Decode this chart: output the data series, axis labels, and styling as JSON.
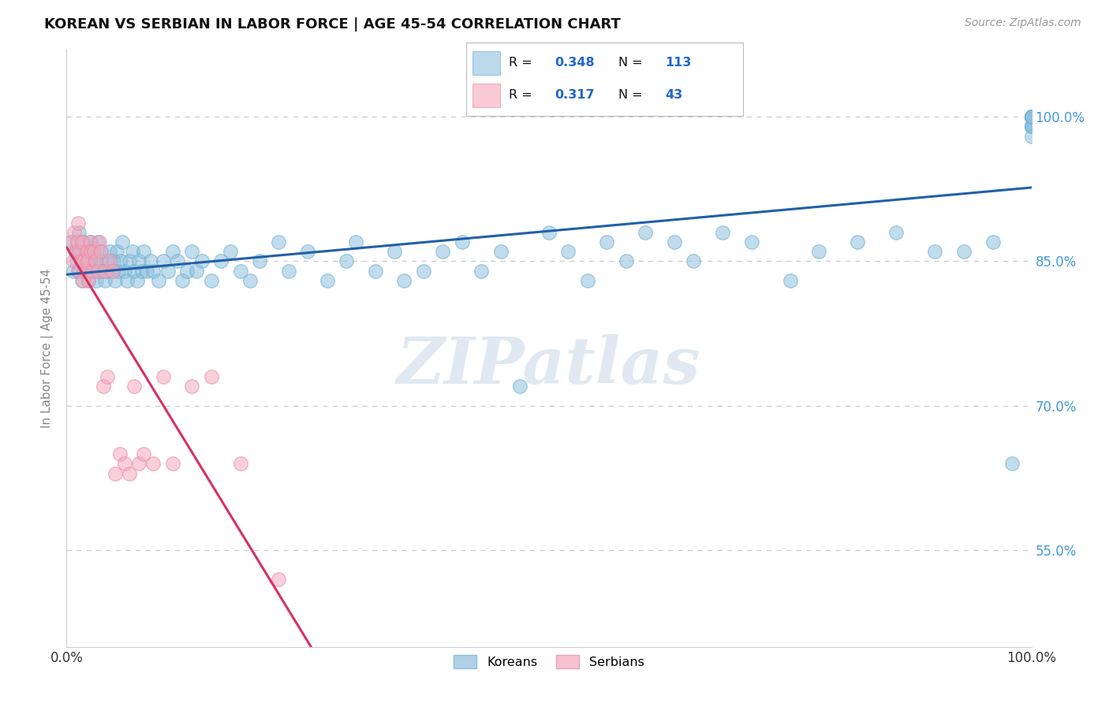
{
  "title": "KOREAN VS SERBIAN IN LABOR FORCE | AGE 45-54 CORRELATION CHART",
  "source": "Source: ZipAtlas.com",
  "ylabel": "In Labor Force | Age 45-54",
  "xlim": [
    0.0,
    1.0
  ],
  "ylim": [
    0.45,
    1.07
  ],
  "yticks": [
    0.55,
    0.7,
    0.85,
    1.0
  ],
  "ytick_labels": [
    "55.0%",
    "70.0%",
    "85.0%",
    "100.0%"
  ],
  "xtick_labels": [
    "0.0%",
    "100.0%"
  ],
  "blue_color": "#8ec0de",
  "pink_color": "#f4a8bc",
  "blue_edge": "#6aaed0",
  "pink_edge": "#e888a4",
  "trend_blue": "#2060a8",
  "trend_pink": "#d83060",
  "r_blue": 0.348,
  "n_blue": 113,
  "r_pink": 0.317,
  "n_pink": 43,
  "watermark": "ZIPatlas",
  "legend_blue_label": "Koreans",
  "legend_pink_label": "Serbians",
  "blue_x": [
    0.005,
    0.007,
    0.009,
    0.01,
    0.012,
    0.013,
    0.013,
    0.015,
    0.016,
    0.017,
    0.018,
    0.019,
    0.02,
    0.021,
    0.022,
    0.023,
    0.024,
    0.025,
    0.026,
    0.027,
    0.028,
    0.03,
    0.031,
    0.032,
    0.034,
    0.035,
    0.036,
    0.038,
    0.04,
    0.041,
    0.043,
    0.045,
    0.047,
    0.049,
    0.05,
    0.052,
    0.054,
    0.056,
    0.058,
    0.06,
    0.063,
    0.065,
    0.068,
    0.07,
    0.073,
    0.075,
    0.078,
    0.08,
    0.083,
    0.087,
    0.09,
    0.095,
    0.1,
    0.105,
    0.11,
    0.115,
    0.12,
    0.125,
    0.13,
    0.135,
    0.14,
    0.15,
    0.16,
    0.17,
    0.18,
    0.19,
    0.2,
    0.22,
    0.23,
    0.25,
    0.27,
    0.29,
    0.3,
    0.32,
    0.34,
    0.35,
    0.37,
    0.39,
    0.41,
    0.43,
    0.45,
    0.47,
    0.5,
    0.52,
    0.54,
    0.56,
    0.58,
    0.6,
    0.63,
    0.65,
    0.68,
    0.71,
    0.75,
    0.78,
    0.82,
    0.86,
    0.9,
    0.93,
    0.96,
    0.98,
    1.0,
    1.0,
    1.0,
    1.0,
    1.0,
    1.0,
    1.0,
    1.0,
    1.0,
    1.0,
    1.0,
    1.0,
    1.0
  ],
  "blue_y": [
    0.87,
    0.84,
    0.86,
    0.85,
    0.84,
    0.86,
    0.88,
    0.85,
    0.83,
    0.87,
    0.84,
    0.86,
    0.85,
    0.84,
    0.86,
    0.83,
    0.85,
    0.87,
    0.84,
    0.86,
    0.84,
    0.85,
    0.83,
    0.87,
    0.84,
    0.86,
    0.85,
    0.84,
    0.83,
    0.85,
    0.84,
    0.86,
    0.84,
    0.85,
    0.83,
    0.86,
    0.84,
    0.85,
    0.87,
    0.84,
    0.83,
    0.85,
    0.86,
    0.84,
    0.83,
    0.85,
    0.84,
    0.86,
    0.84,
    0.85,
    0.84,
    0.83,
    0.85,
    0.84,
    0.86,
    0.85,
    0.83,
    0.84,
    0.86,
    0.84,
    0.85,
    0.83,
    0.85,
    0.86,
    0.84,
    0.83,
    0.85,
    0.87,
    0.84,
    0.86,
    0.83,
    0.85,
    0.87,
    0.84,
    0.86,
    0.83,
    0.84,
    0.86,
    0.87,
    0.84,
    0.86,
    0.72,
    0.88,
    0.86,
    0.83,
    0.87,
    0.85,
    0.88,
    0.87,
    0.85,
    0.88,
    0.87,
    0.83,
    0.86,
    0.87,
    0.88,
    0.86,
    0.86,
    0.87,
    0.64,
    1.0,
    1.0,
    0.99,
    1.0,
    0.99,
    1.0,
    1.0,
    0.99,
    1.0,
    0.99,
    1.0,
    0.98,
    1.0
  ],
  "pink_x": [
    0.005,
    0.007,
    0.008,
    0.01,
    0.011,
    0.012,
    0.013,
    0.014,
    0.015,
    0.016,
    0.017,
    0.018,
    0.02,
    0.021,
    0.022,
    0.023,
    0.024,
    0.025,
    0.027,
    0.028,
    0.03,
    0.032,
    0.034,
    0.036,
    0.038,
    0.04,
    0.042,
    0.045,
    0.048,
    0.05,
    0.055,
    0.06,
    0.065,
    0.07,
    0.075,
    0.08,
    0.09,
    0.1,
    0.11,
    0.13,
    0.15,
    0.18,
    0.22
  ],
  "pink_y": [
    0.87,
    0.85,
    0.88,
    0.86,
    0.87,
    0.89,
    0.84,
    0.86,
    0.85,
    0.87,
    0.83,
    0.85,
    0.84,
    0.86,
    0.85,
    0.83,
    0.87,
    0.86,
    0.84,
    0.86,
    0.85,
    0.84,
    0.87,
    0.86,
    0.72,
    0.84,
    0.73,
    0.85,
    0.84,
    0.63,
    0.65,
    0.64,
    0.63,
    0.72,
    0.64,
    0.65,
    0.64,
    0.73,
    0.64,
    0.72,
    0.73,
    0.64,
    0.52
  ]
}
